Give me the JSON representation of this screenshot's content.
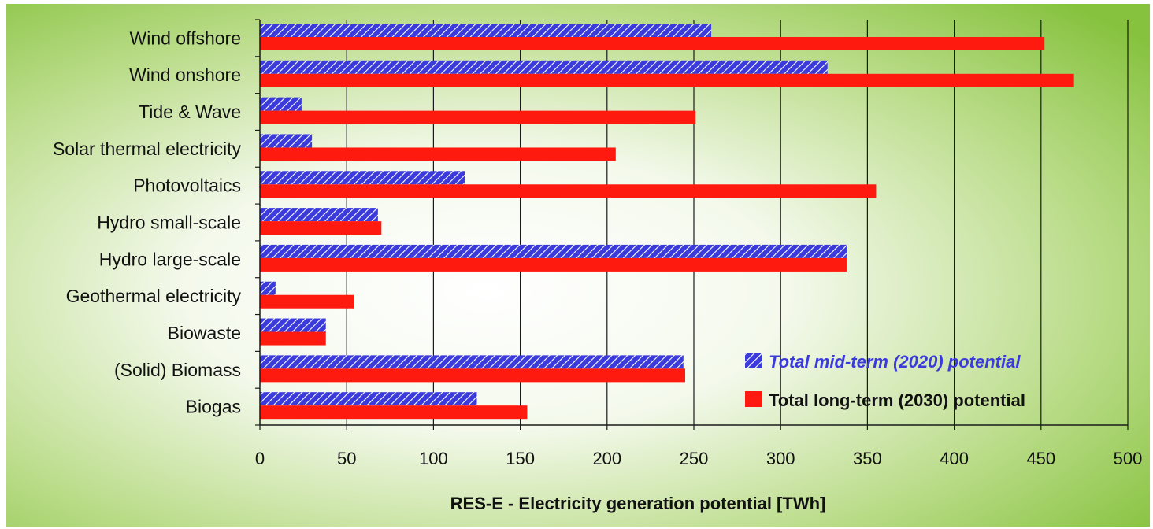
{
  "chart_data": {
    "type": "bar",
    "orientation": "horizontal",
    "categories": [
      "Wind offshore",
      "Wind onshore",
      "Tide & Wave",
      "Solar thermal electricity",
      "Photovoltaics",
      "Hydro small-scale",
      "Hydro large-scale",
      "Geothermal electricity",
      "Biowaste",
      "(Solid) Biomass",
      "Biogas"
    ],
    "series": [
      {
        "name": "Total mid-term (2020) potential",
        "values": [
          260,
          327,
          24,
          30,
          118,
          68,
          338,
          9,
          38,
          244,
          125
        ],
        "color": "#3b3bdc",
        "pattern": "hatched"
      },
      {
        "name": "Total long-term (2030) potential",
        "values": [
          452,
          469,
          251,
          205,
          355,
          70,
          338,
          54,
          38,
          245,
          154
        ],
        "color": "#ff1a10",
        "pattern": "solid"
      }
    ],
    "xlabel": "RES-E - Electricity generation potential [TWh]",
    "ylabel": "",
    "xlim": [
      0,
      500
    ],
    "xticks": [
      0,
      50,
      100,
      150,
      200,
      250,
      300,
      350,
      400,
      450,
      500
    ],
    "grid": true,
    "legend_position": "bottom-right",
    "background": "green gradient"
  }
}
